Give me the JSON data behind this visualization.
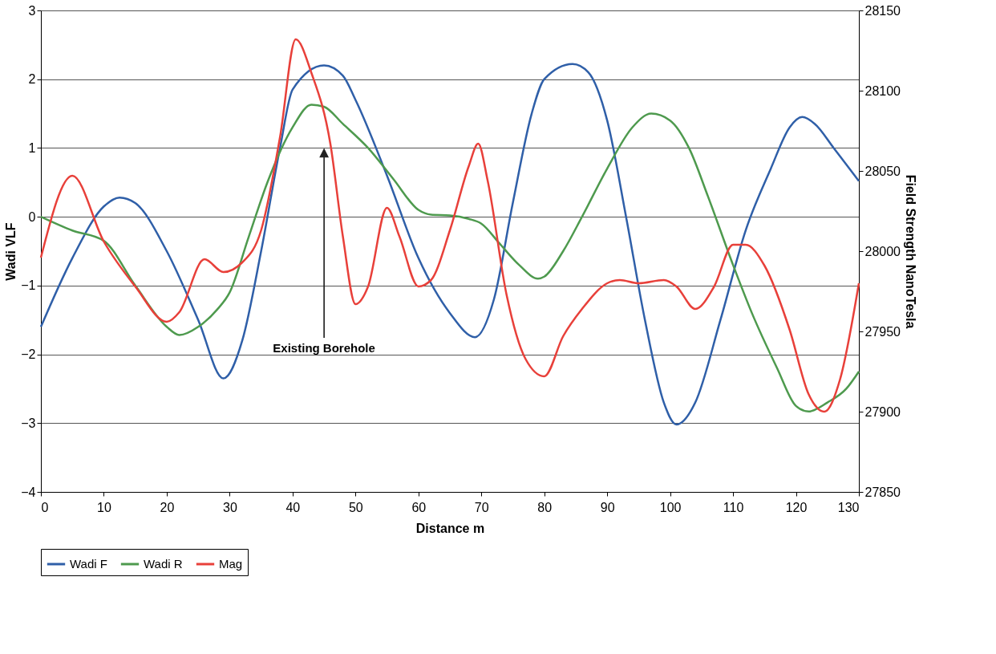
{
  "chart_data": {
    "type": "line",
    "xlabel": "Distance m",
    "ylabel": "Wadi VLF",
    "y2label": "Field Strength NanoTesla",
    "xlim": [
      0,
      130
    ],
    "xticks": [
      0,
      10,
      20,
      30,
      40,
      50,
      60,
      70,
      80,
      90,
      100,
      110,
      120,
      130
    ],
    "ylim": [
      -4,
      3
    ],
    "yticks": [
      -4,
      -3,
      -2,
      -1,
      0,
      1,
      2,
      3
    ],
    "y2lim": [
      27850,
      28150
    ],
    "y2ticks": [
      27850,
      27900,
      27950,
      28000,
      28050,
      28100,
      28150
    ],
    "grid": "y",
    "legend": "bottom",
    "marker": "none",
    "line_style": "solid",
    "annotations": [
      "Existing Borehole"
    ],
    "series": [
      {
        "name": "Wadi F",
        "color": "#2f5fa8",
        "x": [
          0,
          5,
          10,
          12.5,
          15,
          20,
          25,
          29,
          32,
          35,
          38,
          40,
          45,
          48,
          50,
          55,
          60,
          65,
          69,
          72,
          75,
          78,
          80,
          84.5,
          87,
          90,
          93,
          96,
          99,
          101,
          104,
          108,
          112,
          116,
          119,
          121,
          123,
          126,
          130
        ],
        "values": [
          -1.6,
          -0.6,
          0.15,
          0.28,
          0.2,
          -0.5,
          -1.5,
          -2.35,
          -1.8,
          -0.5,
          1.0,
          1.85,
          2.2,
          2.05,
          1.7,
          0.6,
          -0.6,
          -1.4,
          -1.75,
          -1.2,
          0.2,
          1.5,
          2.0,
          2.22,
          2.1,
          1.4,
          0,
          -1.5,
          -2.7,
          -3.02,
          -2.7,
          -1.5,
          -0.2,
          0.7,
          1.3,
          1.45,
          1.35,
          1.0,
          0.52
        ]
      },
      {
        "name": "Wadi R",
        "color": "#4e9a4e",
        "x": [
          0,
          5,
          10,
          15,
          20,
          22,
          25,
          28,
          30,
          33,
          36,
          40,
          43,
          45,
          48,
          52,
          56,
          60,
          62,
          65,
          68,
          70,
          73,
          76,
          79,
          80,
          83,
          86,
          90,
          94,
          97,
          100,
          103,
          106,
          110,
          113,
          117,
          120,
          122,
          125,
          128,
          130
        ],
        "values": [
          0,
          -0.2,
          -0.35,
          -1.0,
          -1.6,
          -1.72,
          -1.6,
          -1.35,
          -1.1,
          -0.3,
          0.5,
          1.3,
          1.63,
          1.6,
          1.35,
          1.0,
          0.55,
          0.1,
          0.03,
          0.02,
          -0.03,
          -0.1,
          -0.4,
          -0.7,
          -0.9,
          -0.87,
          -0.5,
          0.0,
          0.7,
          1.3,
          1.5,
          1.4,
          1.0,
          0.3,
          -0.7,
          -1.4,
          -2.2,
          -2.75,
          -2.83,
          -2.7,
          -2.5,
          -2.25
        ]
      },
      {
        "name": "Mag",
        "color": "#e8403a",
        "axis": "y2",
        "x": [
          0,
          5,
          10,
          15,
          20,
          22,
          26,
          29,
          32,
          35,
          38,
          40.5,
          43,
          46,
          48,
          50,
          52,
          55,
          57,
          60,
          62,
          65,
          68,
          69.5,
          71,
          74,
          77,
          80,
          83,
          86,
          90,
          92,
          95,
          99,
          101,
          104,
          107,
          110,
          112,
          115,
          119,
          122,
          124.5,
          127,
          130
        ],
        "values": [
          27996,
          28047,
          28006,
          27978,
          27956,
          27962,
          27995,
          27987,
          27993,
          28013,
          28071,
          28132,
          28111,
          28067,
          28009,
          27967,
          27978,
          28027,
          28009,
          27978,
          27982,
          28013,
          28053,
          28067,
          28044,
          27973,
          27933,
          27922,
          27947,
          27964,
          27980,
          27982,
          27980,
          27982,
          27978,
          27964,
          27978,
          28004,
          28004,
          27991,
          27951,
          27911,
          27900,
          27920,
          27980
        ]
      }
    ]
  }
}
